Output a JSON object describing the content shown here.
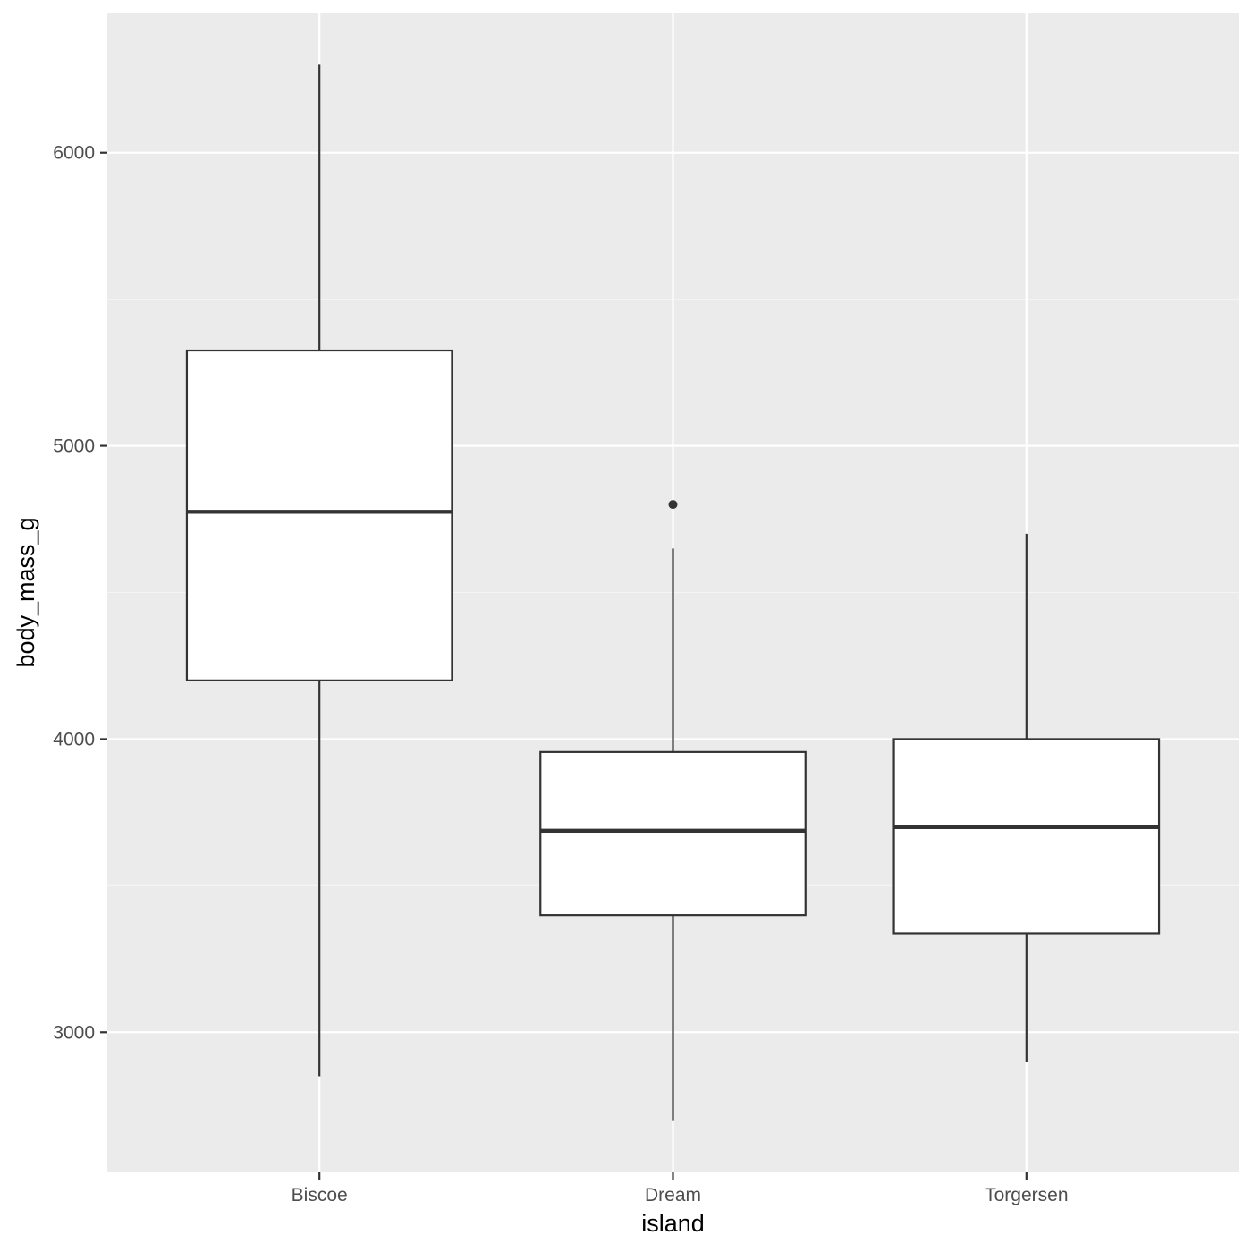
{
  "chart_data": {
    "type": "boxplot",
    "title": "",
    "xlabel": "island",
    "ylabel": "body_mass_g",
    "categories": [
      "Biscoe",
      "Dream",
      "Torgersen"
    ],
    "boxes": [
      {
        "category": "Biscoe",
        "whisker_low": 2850,
        "q1": 4200,
        "median": 4775,
        "q3": 5325,
        "whisker_high": 6300,
        "outliers": []
      },
      {
        "category": "Dream",
        "whisker_low": 2700,
        "q1": 3400,
        "median": 3687.5,
        "q3": 3956,
        "whisker_high": 4650,
        "outliers": [
          4800
        ]
      },
      {
        "category": "Torgersen",
        "whisker_low": 2900,
        "q1": 3338,
        "median": 3700,
        "q3": 4000,
        "whisker_high": 4700,
        "outliers": []
      }
    ],
    "yticks": [
      3000,
      4000,
      5000,
      6000
    ],
    "ytick_labels": [
      "3000",
      "4000",
      "5000",
      "6000"
    ],
    "ylim": [
      2522,
      6478
    ],
    "grid": true,
    "legend": "none",
    "colors": {
      "panel_background": "#ebebeb",
      "grid_major": "#ffffff",
      "grid_minor": "#f5f5f5",
      "box_fill": "#ffffff",
      "box_line": "#333333",
      "tick_mark": "#333333",
      "tick_text": "#4d4d4d",
      "axis_title": "#000000"
    }
  }
}
